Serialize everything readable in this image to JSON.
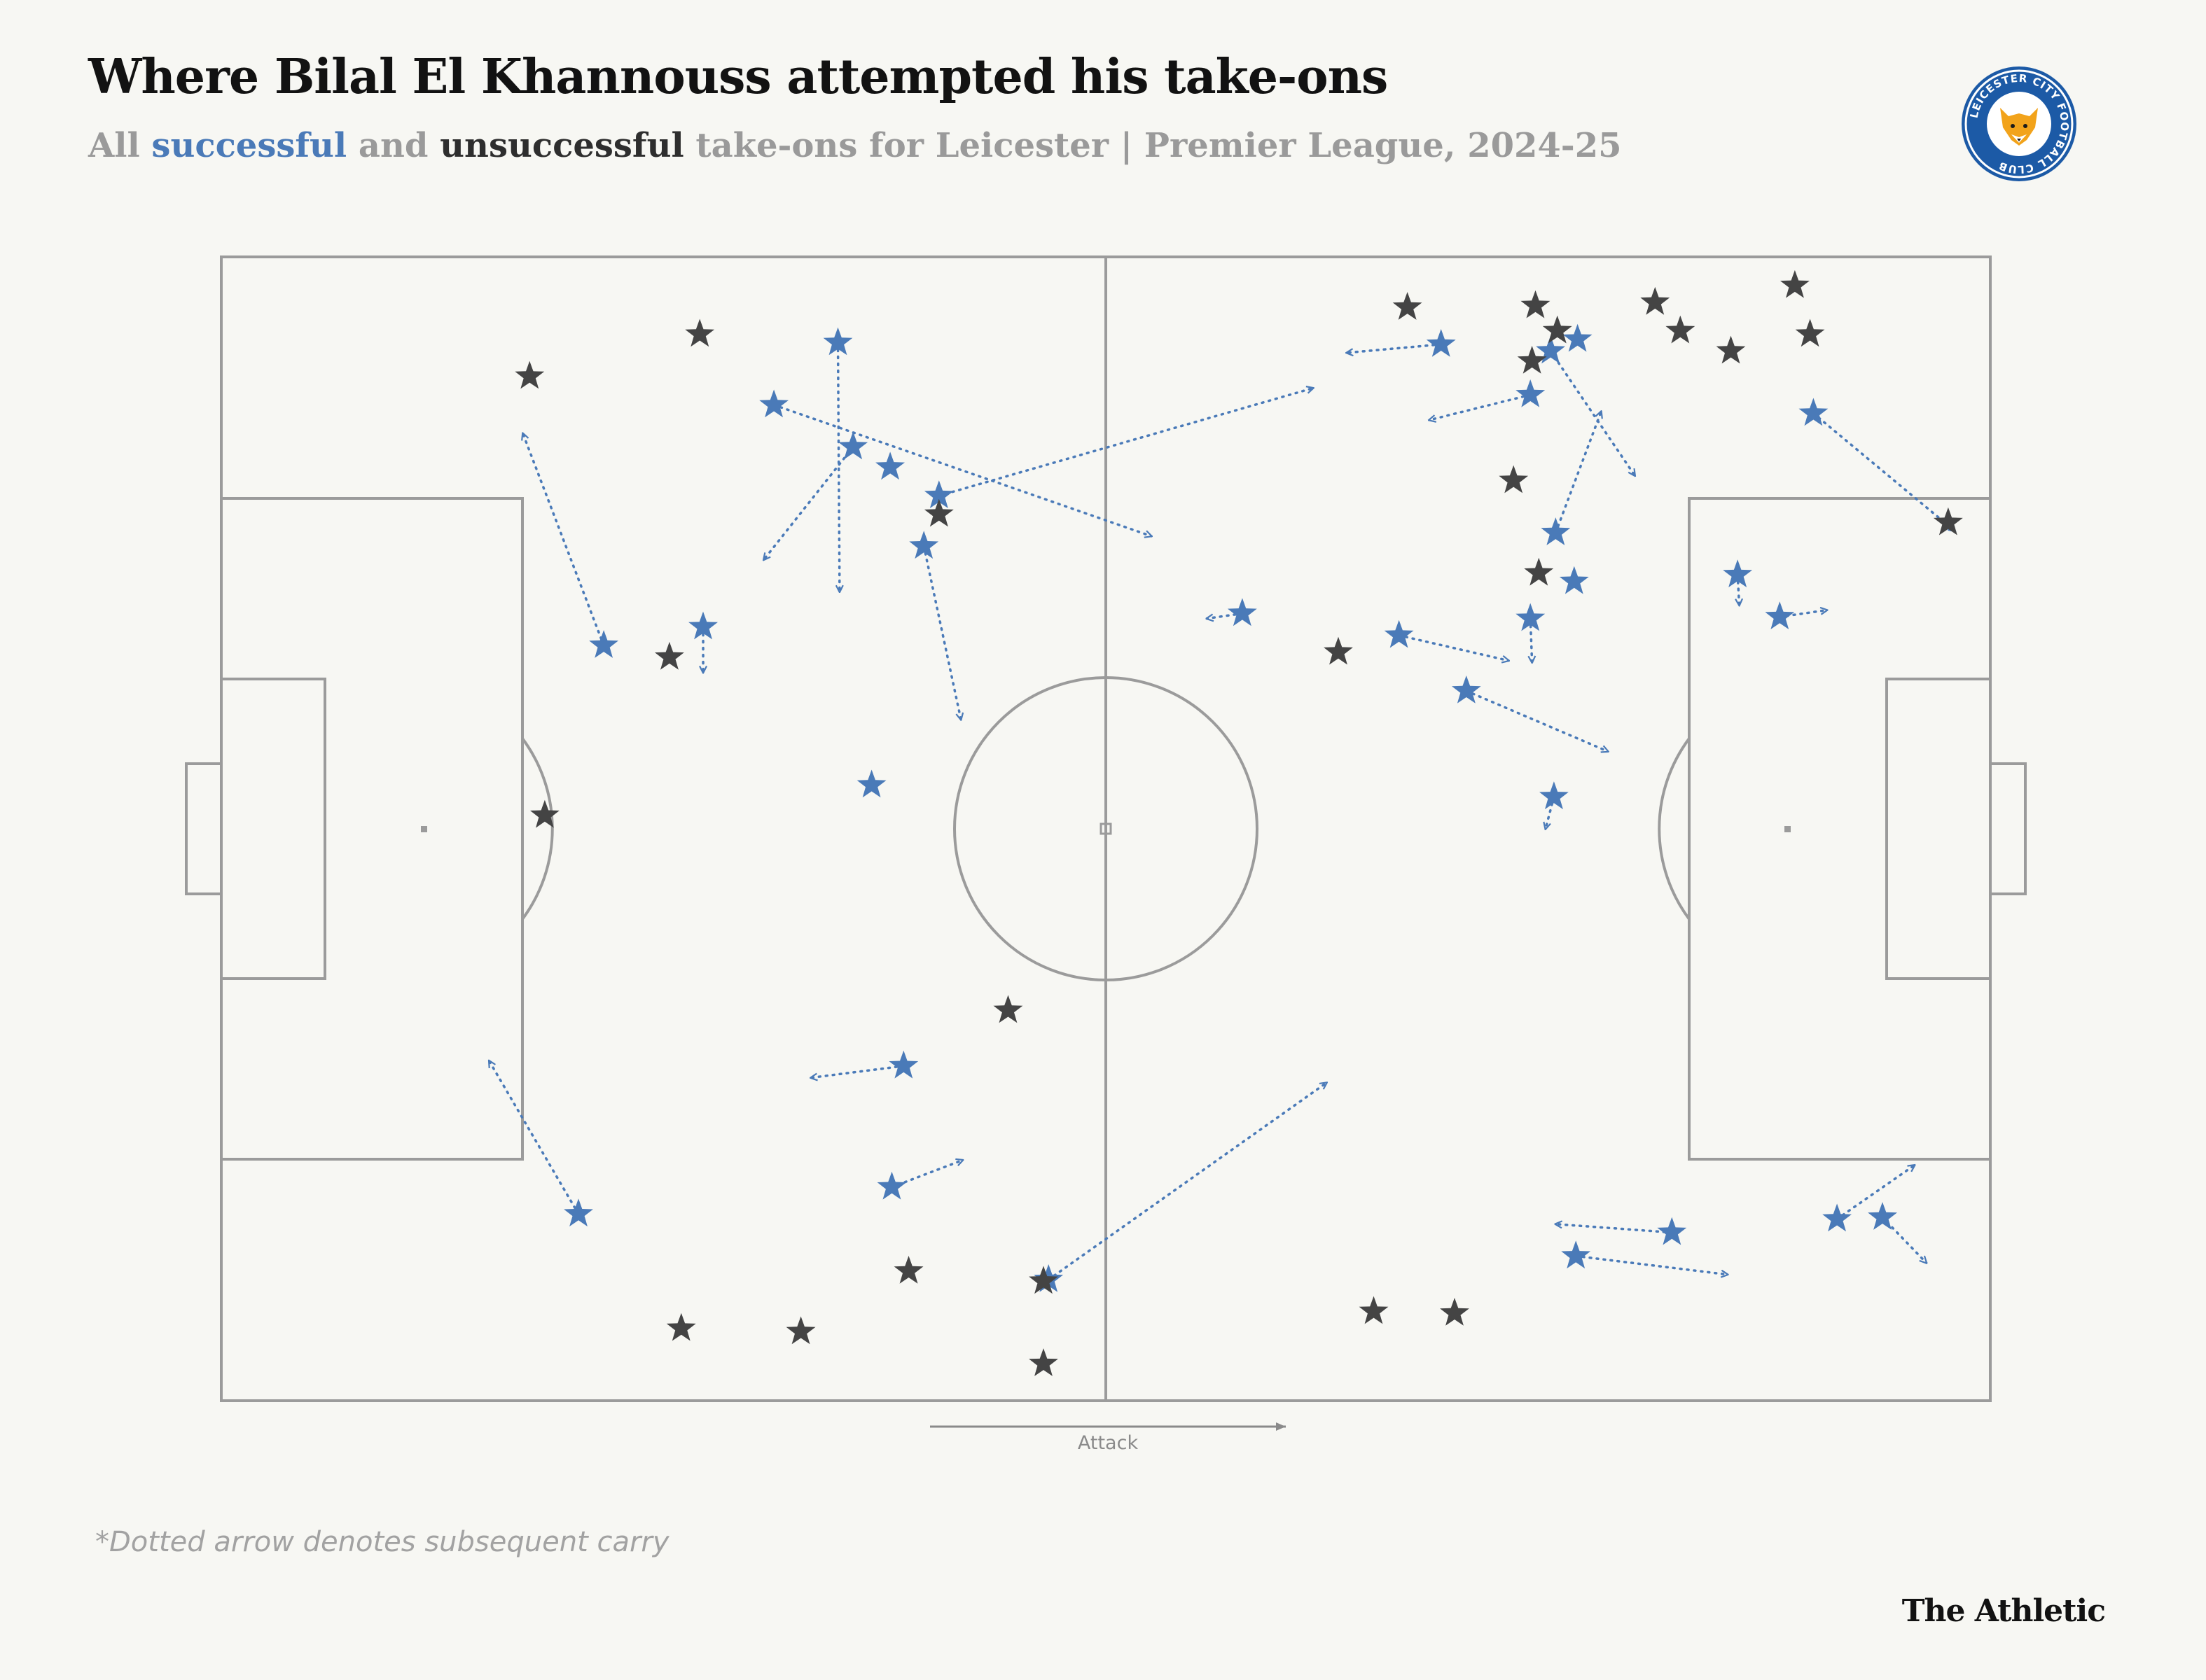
{
  "header": {
    "title": "Where Bilal El Khannouss attempted his take-ons",
    "subtitle": {
      "prefix": "All ",
      "successful": "successful",
      "middle": " and ",
      "unsuccessful": "unsuccessful",
      "suffix": " take-ons for Leicester | Premier League, 2024-25"
    }
  },
  "logo": {
    "text": "LEICESTER CITY FOOTBALL CLUB",
    "icon": "fox-crest-icon"
  },
  "colors": {
    "background": "#f7f7f3",
    "pitch_lines": "#9b9b9b",
    "successful": "#4a7ab8",
    "unsuccessful": "#444444"
  },
  "axis": {
    "attack_label": "Attack"
  },
  "footnote": "*Dotted arrow denotes subsequent carry",
  "credit": "The Athletic",
  "chart_data": {
    "type": "scatter",
    "pitch": {
      "length": 105,
      "width": 68,
      "units": "metres",
      "attack_direction": "left-to-right"
    },
    "series": [
      {
        "name": "successful",
        "points": [
          {
            "x": 36.6,
            "y": 5.1,
            "carry_to": [
              36.7,
              19.9
            ]
          },
          {
            "x": 32.8,
            "y": 8.8,
            "carry_to": [
              55.2,
              16.6
            ]
          },
          {
            "x": 37.5,
            "y": 11.3,
            "carry_to": [
              32.2,
              18.0
            ]
          },
          {
            "x": 39.7,
            "y": 12.5
          },
          {
            "x": 42.6,
            "y": 14.2,
            "carry_to": [
              64.8,
              7.8
            ]
          },
          {
            "x": 41.7,
            "y": 17.2,
            "carry_to": [
              43.9,
              27.5
            ]
          },
          {
            "x": 22.7,
            "y": 23.1,
            "carry_to": [
              17.9,
              10.5
            ]
          },
          {
            "x": 28.6,
            "y": 22.0,
            "carry_to": [
              28.6,
              24.7
            ]
          },
          {
            "x": 38.6,
            "y": 31.4
          },
          {
            "x": 40.5,
            "y": 48.1,
            "carry_to": [
              35.0,
              48.8
            ]
          },
          {
            "x": 39.8,
            "y": 55.3,
            "carry_to": [
              44.0,
              53.7
            ]
          },
          {
            "x": 21.2,
            "y": 56.9,
            "carry_to": [
              15.9,
              47.8
            ]
          },
          {
            "x": 49.1,
            "y": 60.8,
            "carry_to": [
              65.6,
              49.1
            ]
          },
          {
            "x": 72.4,
            "y": 5.2,
            "carry_to": [
              66.8,
              5.7
            ]
          },
          {
            "x": 77.7,
            "y": 8.2,
            "carry_to": [
              71.7,
              9.7
            ]
          },
          {
            "x": 78.9,
            "y": 5.6,
            "carry_to": [
              83.9,
              13.0
            ]
          },
          {
            "x": 80.5,
            "y": 4.9
          },
          {
            "x": 79.2,
            "y": 16.4,
            "carry_to": [
              81.9,
              9.2
            ]
          },
          {
            "x": 80.3,
            "y": 19.3
          },
          {
            "x": 77.7,
            "y": 21.5,
            "carry_to": [
              77.8,
              24.1
            ]
          },
          {
            "x": 69.9,
            "y": 22.5,
            "carry_to": [
              76.4,
              24.0
            ]
          },
          {
            "x": 60.6,
            "y": 21.2,
            "carry_to": [
              58.5,
              21.5
            ]
          },
          {
            "x": 73.9,
            "y": 25.8,
            "carry_to": [
              82.3,
              29.4
            ]
          },
          {
            "x": 79.1,
            "y": 32.1,
            "carry_to": [
              78.6,
              34.0
            ]
          },
          {
            "x": 94.5,
            "y": 9.3,
            "carry_to": [
              102.9,
              16.3
            ]
          },
          {
            "x": 90.0,
            "y": 18.9,
            "carry_to": [
              90.1,
              20.7
            ]
          },
          {
            "x": 92.5,
            "y": 21.4,
            "carry_to": [
              95.3,
              21.0
            ]
          },
          {
            "x": 86.1,
            "y": 58.0,
            "carry_to": [
              79.2,
              57.5
            ]
          },
          {
            "x": 80.4,
            "y": 59.4,
            "carry_to": [
              89.4,
              60.5
            ]
          },
          {
            "x": 95.9,
            "y": 57.2,
            "carry_to": [
              100.5,
              54.0
            ]
          },
          {
            "x": 98.6,
            "y": 57.1,
            "carry_to": [
              101.2,
              59.8
            ]
          }
        ]
      },
      {
        "name": "unsuccessful",
        "points": [
          {
            "x": 28.4,
            "y": 4.6
          },
          {
            "x": 18.3,
            "y": 7.1
          },
          {
            "x": 42.6,
            "y": 15.3
          },
          {
            "x": 26.6,
            "y": 23.8
          },
          {
            "x": 19.2,
            "y": 33.2
          },
          {
            "x": 46.7,
            "y": 44.8
          },
          {
            "x": 40.8,
            "y": 60.3
          },
          {
            "x": 48.8,
            "y": 60.9
          },
          {
            "x": 27.3,
            "y": 63.7
          },
          {
            "x": 34.4,
            "y": 63.9
          },
          {
            "x": 48.8,
            "y": 65.8
          },
          {
            "x": 70.4,
            "y": 3.0
          },
          {
            "x": 78.0,
            "y": 2.9
          },
          {
            "x": 79.3,
            "y": 4.4
          },
          {
            "x": 77.8,
            "y": 6.2
          },
          {
            "x": 85.1,
            "y": 2.7
          },
          {
            "x": 86.6,
            "y": 4.4
          },
          {
            "x": 89.6,
            "y": 5.6
          },
          {
            "x": 93.4,
            "y": 1.7
          },
          {
            "x": 94.3,
            "y": 4.6
          },
          {
            "x": 76.7,
            "y": 13.3
          },
          {
            "x": 78.2,
            "y": 18.8
          },
          {
            "x": 102.5,
            "y": 15.8
          },
          {
            "x": 66.3,
            "y": 23.5
          },
          {
            "x": 68.4,
            "y": 62.7
          },
          {
            "x": 73.2,
            "y": 62.8
          }
        ]
      }
    ]
  }
}
